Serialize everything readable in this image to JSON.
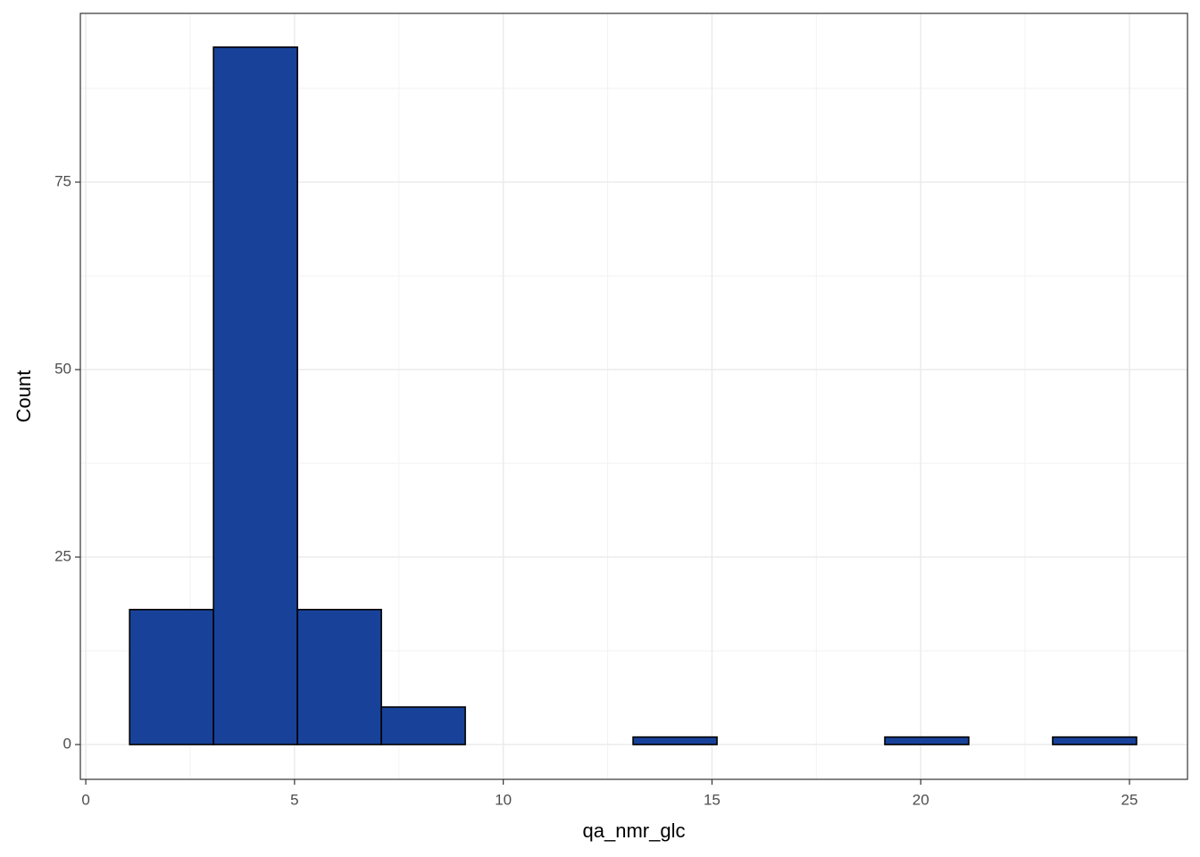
{
  "chart_data": {
    "type": "histogram",
    "x_label": "qa_nmr_glc",
    "y_label": "Count",
    "bins": [
      1.05,
      3.06,
      5.07,
      7.08,
      9.09,
      11.1,
      13.11,
      15.12,
      17.13,
      19.14,
      21.15,
      23.16,
      25.17
    ],
    "counts": [
      18,
      93,
      18,
      5,
      0,
      0,
      1,
      0,
      0,
      1,
      0,
      1
    ],
    "color": "#18429a",
    "edge_color": "#000000",
    "xlim": [
      -0.13,
      26.39
    ],
    "xticks": [
      0,
      5,
      10,
      15,
      20,
      25
    ],
    "ylim": [
      -4.64,
      97.5
    ],
    "yticks": [
      0,
      25,
      50,
      75
    ],
    "grid": true
  }
}
